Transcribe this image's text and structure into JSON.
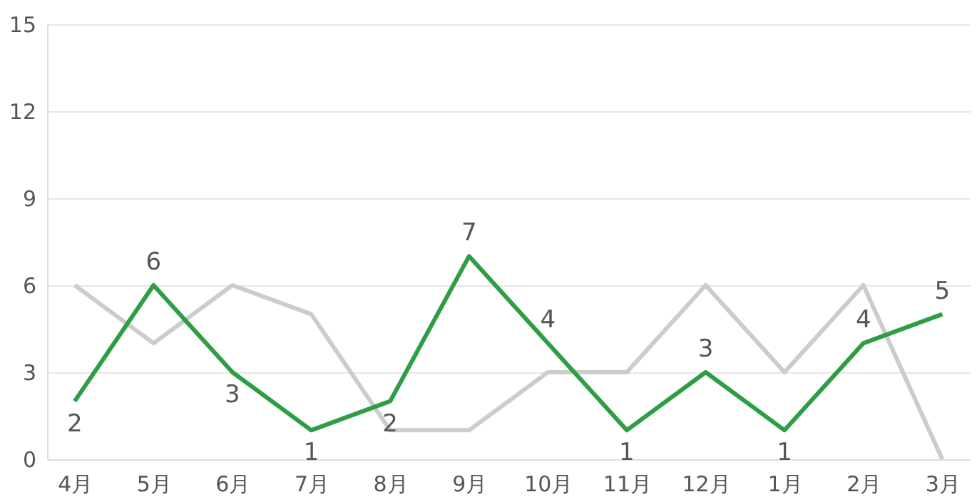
{
  "chart_data": {
    "type": "line",
    "categories": [
      "4月",
      "5月",
      "6月",
      "7月",
      "8月",
      "9月",
      "10月",
      "11月",
      "12月",
      "1月",
      "2月",
      "3月"
    ],
    "series": [
      {
        "color": "#cccccc",
        "values": [
          6,
          4,
          6,
          5,
          1,
          1,
          3,
          3,
          6,
          3,
          6,
          0
        ]
      },
      {
        "color": "#2e9e44",
        "values": [
          2,
          6,
          3,
          1,
          2,
          7,
          4,
          1,
          3,
          1,
          4,
          5
        ],
        "value_labels": [
          "2",
          "6",
          "3",
          "1",
          "2",
          "7",
          "4",
          "1",
          "3",
          "1",
          "4",
          "5"
        ]
      }
    ],
    "ylim": [
      0,
      15
    ],
    "yticks": [
      0,
      3,
      6,
      9,
      12,
      15
    ],
    "grid": "y",
    "marker": "none",
    "line_style": "solid"
  }
}
